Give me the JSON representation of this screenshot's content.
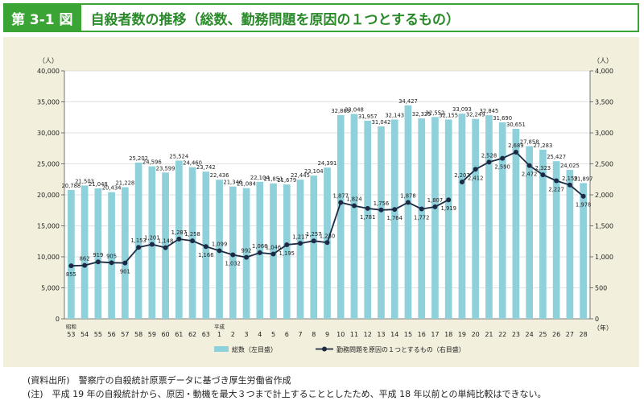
{
  "figure": {
    "label": "第 3-1 図",
    "title": "自殺者数の推移（総数、勤務問題を原因の１つとするもの）"
  },
  "notes": {
    "source": "(資料出所)　警察庁の自殺統計原票データに基づき厚生労働省作成",
    "note": "(注)　平成 19 年の自殺統計から、原因・動機を最大３つまで計上することとしたため、平成 18 年以前との単純比較はできない。"
  },
  "colors": {
    "bar": "#8fd1db",
    "line": "#1d2a44",
    "frame": "#3aa535"
  },
  "chart_data": {
    "type": "bar",
    "left_unit": "（人）",
    "right_unit": "（人）",
    "x_unit": "（年）",
    "era_labels": [
      {
        "index": 0,
        "text": "昭和"
      },
      {
        "index": 11,
        "text": "平成"
      }
    ],
    "categories": [
      "53",
      "54",
      "55",
      "56",
      "57",
      "58",
      "59",
      "60",
      "61",
      "62",
      "63",
      "1",
      "2",
      "3",
      "4",
      "5",
      "6",
      "7",
      "8",
      "9",
      "10",
      "11",
      "12",
      "13",
      "14",
      "15",
      "16",
      "17",
      "18",
      "19",
      "20",
      "21",
      "22",
      "23",
      "24",
      "25",
      "26",
      "27",
      "28"
    ],
    "ylim_left": [
      0,
      40000
    ],
    "yticks_left": [
      "0",
      "5,000",
      "10,000",
      "15,000",
      "20,000",
      "25,000",
      "30,000",
      "35,000",
      "40,000"
    ],
    "ylim_right": [
      0,
      4000
    ],
    "yticks_right": [
      "0",
      "500",
      "1,000",
      "1,500",
      "2,000",
      "2,500",
      "3,000",
      "3,500",
      "4,000"
    ],
    "series": [
      {
        "name": "総数（左目盛）",
        "type": "bar",
        "axis": "left",
        "values": [
          20788,
          21503,
          21048,
          20434,
          21228,
          25202,
          24596,
          23599,
          25524,
          24460,
          23742,
          22436,
          21346,
          21084,
          22104,
          21851,
          21679,
          22445,
          23104,
          24391,
          32863,
          33048,
          31957,
          31042,
          32143,
          34427,
          32325,
          32552,
          32155,
          33093,
          32249,
          32845,
          31690,
          30651,
          27858,
          27283,
          25427,
          24025,
          21897
        ],
        "labels": [
          "20,788",
          "21,503",
          "21,048",
          "20,434",
          "21,228",
          "25,202",
          "24,596",
          "23,599",
          "25,524",
          "24,460",
          "23,742",
          "22,436",
          "21,346",
          "21,084",
          "22,104",
          "21,851",
          "21,679",
          "22,445",
          "23,104",
          "24,391",
          "32,863",
          "33,048",
          "31,957",
          "31,042",
          "32,143",
          "34,427",
          "32,325",
          "32,552",
          "32,155",
          "33,093",
          "32,249",
          "32,845",
          "31,690",
          "30,651",
          "27,858",
          "27,283",
          "25,427",
          "24,025",
          "21,897"
        ]
      },
      {
        "name": "勤務問題を原因の１つとするもの（右目盛）",
        "type": "line",
        "axis": "right",
        "values": [
          855,
          862,
          919,
          905,
          901,
          1153,
          1201,
          1148,
          1287,
          1258,
          1166,
          1099,
          1032,
          992,
          1066,
          1046,
          1195,
          1217,
          1257,
          1230,
          1877,
          1824,
          1781,
          1756,
          1764,
          1878,
          1772,
          1807,
          1919,
          2207,
          2412,
          2528,
          2590,
          2689,
          2472,
          2323,
          2227,
          2159,
          1978
        ],
        "labels": [
          "855",
          "862",
          "919",
          "905",
          "901",
          "1,153",
          "1,201",
          "1,148",
          "1,287",
          "1,258",
          "1,166",
          "1,099",
          "1,032",
          "992",
          "1,066",
          "1,046",
          "1,195",
          "1,217",
          "1,257",
          "1,230",
          "1,877",
          "1,824",
          "1,781",
          "1,756",
          "1,764",
          "1,878",
          "1,772",
          "1,807",
          "1,919",
          "2,207",
          "2,412",
          "2,528",
          "2,590",
          "2,689",
          "2,472",
          "2,323",
          "2,227",
          "2,159",
          "1,978"
        ],
        "break_after_index": 28
      }
    ],
    "legend": "bottom"
  }
}
